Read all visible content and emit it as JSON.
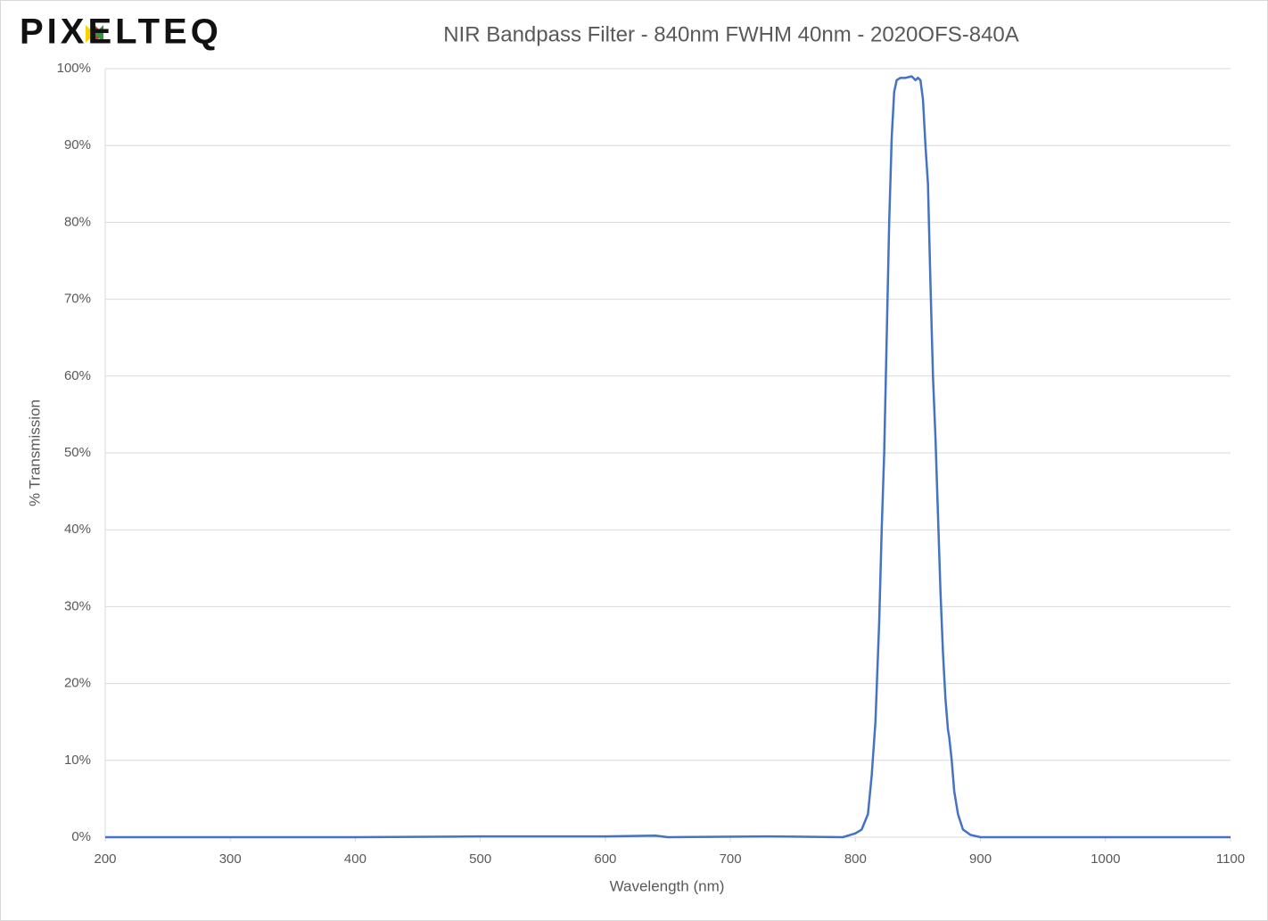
{
  "logo": "PIXELTEQ",
  "chart_data": {
    "type": "line",
    "title": "NIR Bandpass Filter - 840nm FWHM 40nm - 2020OFS-840A",
    "x_label": "Wavelength (nm)",
    "y_label": "% Transmission",
    "grid": true,
    "xlim": [
      200,
      1100
    ],
    "xticks": [
      200,
      300,
      400,
      500,
      600,
      700,
      800,
      900,
      1000,
      1100
    ],
    "ylim": [
      0,
      100
    ],
    "yticks": [
      {
        "value": 0,
        "label": "0%"
      },
      {
        "value": 10,
        "label": "10%"
      },
      {
        "value": 20,
        "label": "20%"
      },
      {
        "value": 30,
        "label": "30%"
      },
      {
        "value": 40,
        "label": "40%"
      },
      {
        "value": 50,
        "label": "50%"
      },
      {
        "value": 60,
        "label": "60%"
      },
      {
        "value": 70,
        "label": "70%"
      },
      {
        "value": 80,
        "label": "80%"
      },
      {
        "value": 90,
        "label": "90%"
      },
      {
        "value": 100,
        "label": "100%"
      }
    ],
    "x": [
      200,
      400,
      500,
      600,
      640,
      650,
      730,
      790,
      800,
      805,
      810,
      813,
      816,
      819,
      821,
      823,
      825,
      827,
      829,
      831,
      833,
      836,
      840,
      845,
      848,
      850,
      852,
      854,
      856,
      858,
      860,
      862,
      864,
      866,
      868,
      870,
      872,
      874,
      875,
      877,
      879,
      882,
      886,
      892,
      900,
      1000,
      1100
    ],
    "series": [
      {
        "color": "#4472c4",
        "values": [
          0,
          0,
          0.1,
          0.1,
          0.2,
          0,
          0.1,
          0,
          0.5,
          1,
          3,
          8,
          15,
          28,
          40,
          50,
          65,
          80,
          91,
          97,
          98.5,
          98.8,
          98.8,
          99,
          98.5,
          98.8,
          98.5,
          96,
          90,
          85,
          72,
          60,
          52,
          42,
          32,
          24,
          18,
          14,
          13,
          10,
          6,
          3,
          1,
          0.3,
          0,
          0,
          0
        ]
      }
    ]
  }
}
